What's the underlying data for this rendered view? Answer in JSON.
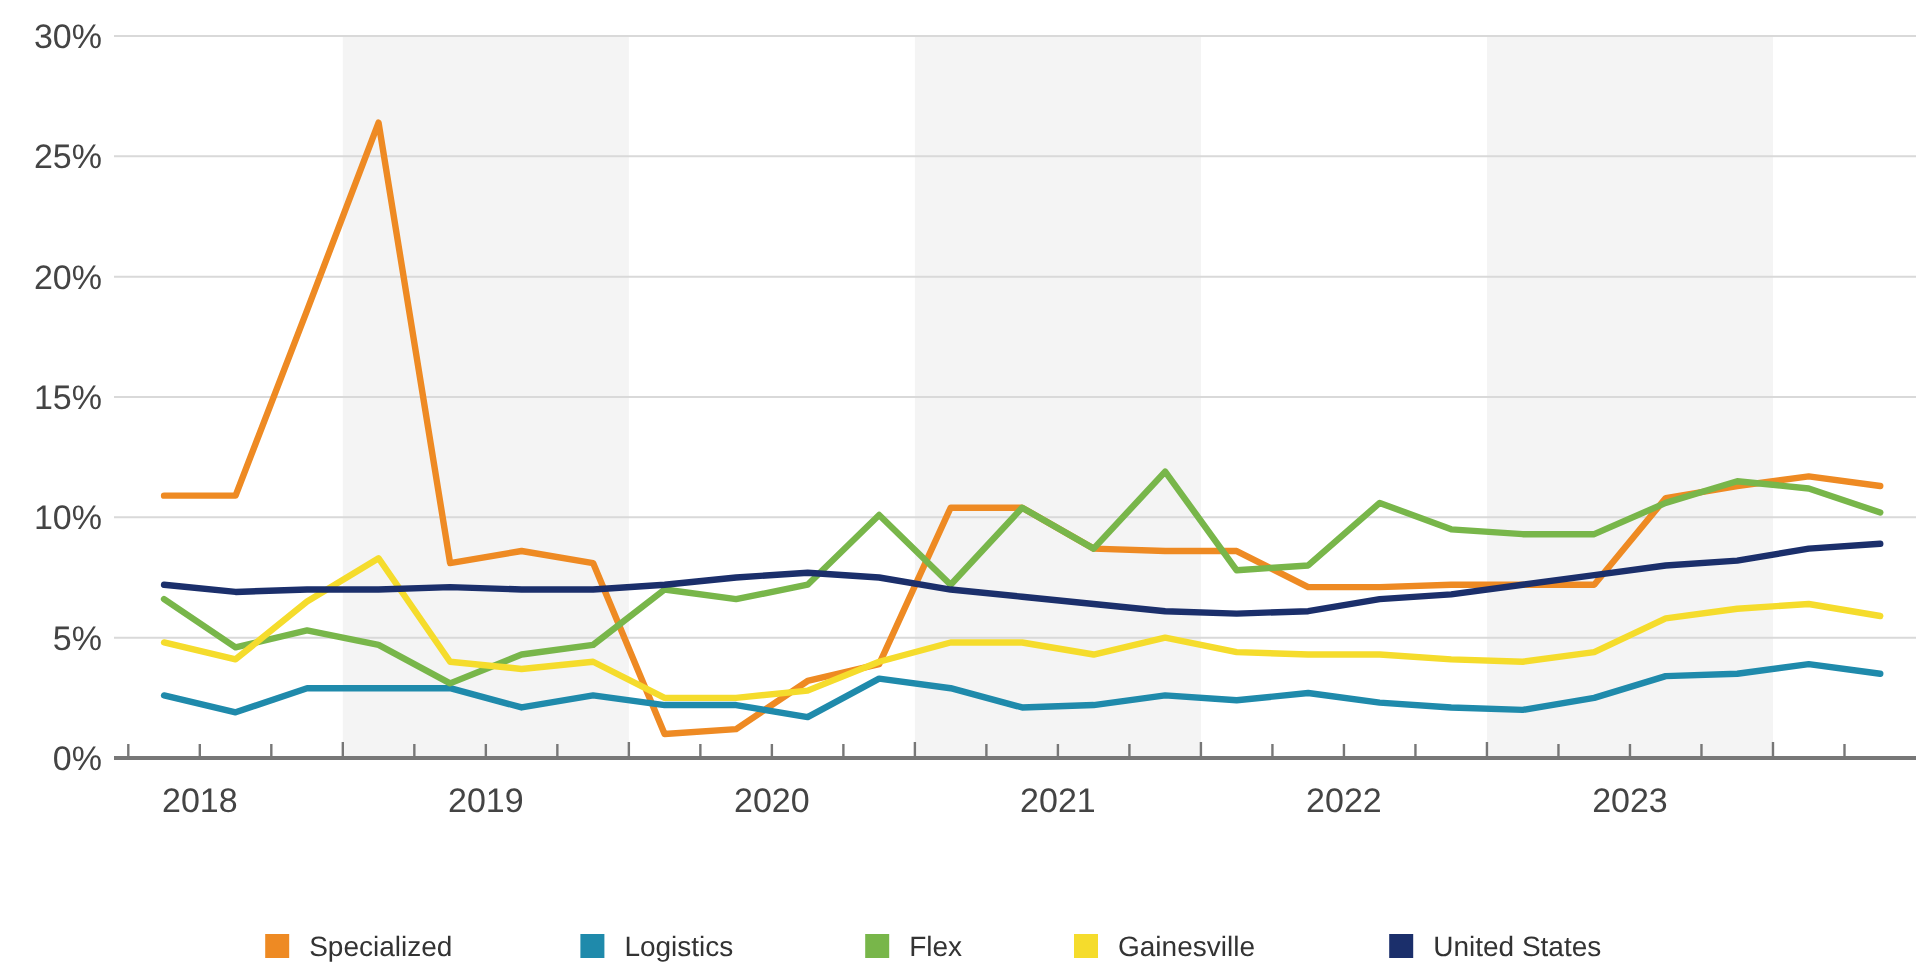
{
  "chart_data": {
    "type": "line",
    "x": [
      2018.375,
      2018.625,
      2018.875,
      2019.125,
      2019.375,
      2019.625,
      2019.875,
      2020.125,
      2020.375,
      2020.625,
      2020.875,
      2021.125,
      2021.375,
      2021.625,
      2021.875,
      2022.125,
      2022.375,
      2022.625,
      2022.875,
      2023.125,
      2023.375,
      2023.625,
      2023.875,
      2024.125,
      2024.375
    ],
    "series": [
      {
        "name": "Specialized",
        "color": "#ee8a23",
        "values": [
          10.9,
          10.9,
          18.6,
          26.4,
          8.1,
          8.6,
          8.1,
          1.0,
          1.2,
          3.2,
          3.9,
          10.4,
          10.4,
          8.7,
          8.6,
          8.6,
          7.1,
          7.1,
          7.2,
          7.2,
          7.2,
          10.8,
          11.3,
          11.7,
          11.3
        ]
      },
      {
        "name": "Logistics",
        "color": "#1f8aab",
        "values": [
          2.6,
          1.9,
          2.9,
          2.9,
          2.9,
          2.1,
          2.6,
          2.2,
          2.2,
          1.7,
          3.3,
          2.9,
          2.1,
          2.2,
          2.6,
          2.4,
          2.7,
          2.3,
          2.1,
          2.0,
          2.5,
          3.4,
          3.5,
          3.9,
          3.5
        ]
      },
      {
        "name": "Flex",
        "color": "#78b64a",
        "values": [
          6.6,
          4.6,
          5.3,
          4.7,
          3.1,
          4.3,
          4.7,
          7.0,
          6.6,
          7.2,
          10.1,
          7.2,
          10.4,
          8.7,
          11.9,
          7.8,
          8.0,
          10.6,
          9.5,
          9.3,
          9.3,
          10.6,
          11.5,
          11.2,
          10.2
        ]
      },
      {
        "name": "Gainesville",
        "color": "#f5dc2c",
        "values": [
          4.8,
          4.1,
          6.5,
          8.3,
          4.0,
          3.7,
          4.0,
          2.5,
          2.5,
          2.8,
          4.0,
          4.8,
          4.8,
          4.3,
          5.0,
          4.4,
          4.3,
          4.3,
          4.1,
          4.0,
          4.4,
          5.8,
          6.2,
          6.4,
          5.9
        ]
      },
      {
        "name": "United States",
        "color": "#1b2f6b",
        "values": [
          7.2,
          6.9,
          7.0,
          7.0,
          7.1,
          7.0,
          7.0,
          7.2,
          7.5,
          7.7,
          7.5,
          7.0,
          6.7,
          6.4,
          6.1,
          6.0,
          6.1,
          6.6,
          6.8,
          7.2,
          7.6,
          8.0,
          8.2,
          8.7,
          8.9
        ]
      }
    ],
    "xlim": [
      2018.2,
      2024.5
    ],
    "xticks": [
      {
        "value": 2018.25,
        "label": null
      },
      {
        "value": 2018.5,
        "label": "2018"
      },
      {
        "value": 2018.75,
        "label": null
      },
      {
        "value": 2019,
        "label": null
      },
      {
        "value": 2019.25,
        "label": null
      },
      {
        "value": 2019.5,
        "label": "2019"
      },
      {
        "value": 2019.75,
        "label": null
      },
      {
        "value": 2020,
        "label": null
      },
      {
        "value": 2020.25,
        "label": null
      },
      {
        "value": 2020.5,
        "label": "2020"
      },
      {
        "value": 2020.75,
        "label": null
      },
      {
        "value": 2021,
        "label": null
      },
      {
        "value": 2021.25,
        "label": null
      },
      {
        "value": 2021.5,
        "label": "2021"
      },
      {
        "value": 2021.75,
        "label": null
      },
      {
        "value": 2022,
        "label": null
      },
      {
        "value": 2022.25,
        "label": null
      },
      {
        "value": 2022.5,
        "label": "2022"
      },
      {
        "value": 2022.75,
        "label": null
      },
      {
        "value": 2023,
        "label": null
      },
      {
        "value": 2023.25,
        "label": null
      },
      {
        "value": 2023.5,
        "label": "2023"
      },
      {
        "value": 2023.75,
        "label": null
      },
      {
        "value": 2024,
        "label": null
      },
      {
        "value": 2024.25,
        "label": null
      }
    ],
    "ylim": [
      0,
      30
    ],
    "yticks": [
      {
        "value": 0,
        "label": "0%"
      },
      {
        "value": 5,
        "label": "5%"
      },
      {
        "value": 10,
        "label": "10%"
      },
      {
        "value": 15,
        "label": "15%"
      },
      {
        "value": 20,
        "label": "20%"
      },
      {
        "value": 25,
        "label": "25%"
      },
      {
        "value": 30,
        "label": "30%"
      }
    ],
    "bands": [
      {
        "axis": "x",
        "from": 2019,
        "to": 2020,
        "color": "#f4f4f4"
      },
      {
        "axis": "x",
        "from": 2021,
        "to": 2022,
        "color": "#f4f4f4"
      },
      {
        "axis": "x",
        "from": 2023,
        "to": 2024,
        "color": "#f4f4f4"
      }
    ],
    "grid": "y",
    "legend": "bottom",
    "marker": "none",
    "line_style": "solid"
  }
}
